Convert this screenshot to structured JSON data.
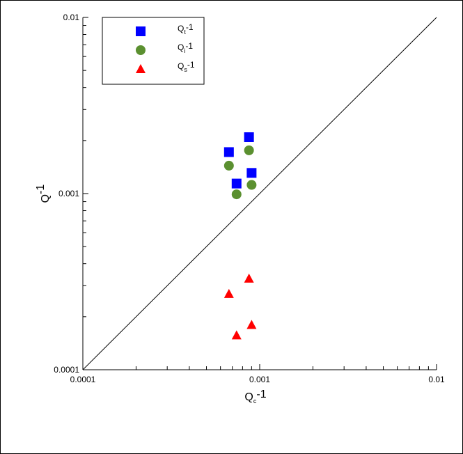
{
  "chart_data": {
    "type": "scatter",
    "title": "",
    "xlabel": {
      "base": "Q",
      "sub": "c",
      "sup": "-1"
    },
    "ylabel": {
      "base": "Q",
      "sub": "",
      "sup": "-1"
    },
    "x_scale": "log",
    "y_scale": "log",
    "xlim": [
      0.0001,
      0.01
    ],
    "ylim": [
      0.0001,
      0.01
    ],
    "x_tick_labels": [
      "0.0001",
      "0.001",
      "0.01"
    ],
    "y_tick_labels": [
      "0.0001",
      "0.001",
      "0.01"
    ],
    "grid": false,
    "legend_position": "top-left",
    "reference_line": {
      "label": "",
      "x": [
        0.0001,
        0.01
      ],
      "y": [
        0.0001,
        0.01
      ],
      "color": "#000000"
    },
    "series": [
      {
        "name": "Qt-1",
        "legend": {
          "base": "Q",
          "sub": "t",
          "sup": "-1"
        },
        "marker": "square",
        "color": "#0000ff",
        "x": [
          0.00067,
          0.00074,
          0.00087,
          0.0009
        ],
        "y": [
          0.00172,
          0.00114,
          0.00209,
          0.00131
        ]
      },
      {
        "name": "Qi-1",
        "legend": {
          "base": "Q",
          "sub": "i",
          "sup": "-1"
        },
        "marker": "circle",
        "color": "#5b9030",
        "x": [
          0.00067,
          0.00074,
          0.00087,
          0.0009
        ],
        "y": [
          0.00144,
          0.00099,
          0.00176,
          0.00112
        ]
      },
      {
        "name": "Qs-1",
        "legend": {
          "base": "Q",
          "sub": "s",
          "sup": "-1"
        },
        "marker": "triangle",
        "color": "#ff0000",
        "x": [
          0.00067,
          0.00074,
          0.00087,
          0.0009
        ],
        "y": [
          0.00027,
          0.000157,
          0.00033,
          0.00018
        ]
      }
    ]
  }
}
